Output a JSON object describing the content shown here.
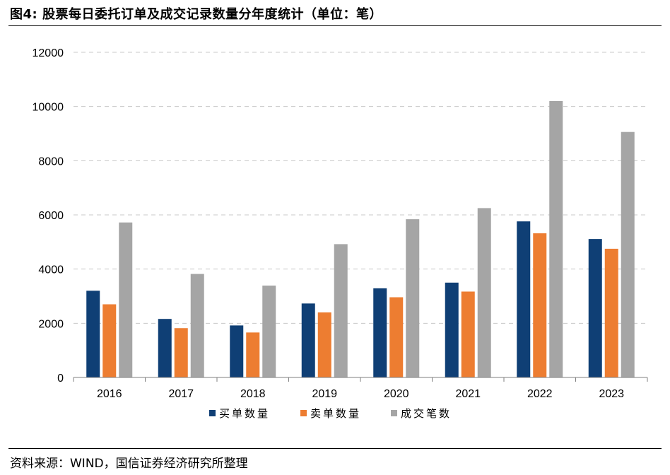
{
  "title": "图4: 股票每日委托订单及成交记录数量分年度统计（单位：笔）",
  "source": "资料来源：WIND，国信证券经济研究所整理",
  "chart_data": {
    "type": "bar",
    "categories": [
      "2016",
      "2017",
      "2018",
      "2019",
      "2020",
      "2021",
      "2022",
      "2023"
    ],
    "series": [
      {
        "name": "买单数量",
        "color": "#0f3f75",
        "values": [
          3200,
          2160,
          1920,
          2730,
          3290,
          3500,
          5760,
          5110
        ]
      },
      {
        "name": "卖单数量",
        "color": "#ed7d31",
        "values": [
          2700,
          1820,
          1660,
          2400,
          2960,
          3170,
          5320,
          4750
        ]
      },
      {
        "name": "成交笔数",
        "color": "#a5a5a5",
        "values": [
          5720,
          3820,
          3390,
          4920,
          5840,
          6250,
          10200,
          9060
        ]
      }
    ],
    "ylim": [
      0,
      12000
    ],
    "yticks": [
      0,
      2000,
      4000,
      6000,
      8000,
      10000,
      12000
    ],
    "grid": true,
    "legend": "bottom"
  }
}
